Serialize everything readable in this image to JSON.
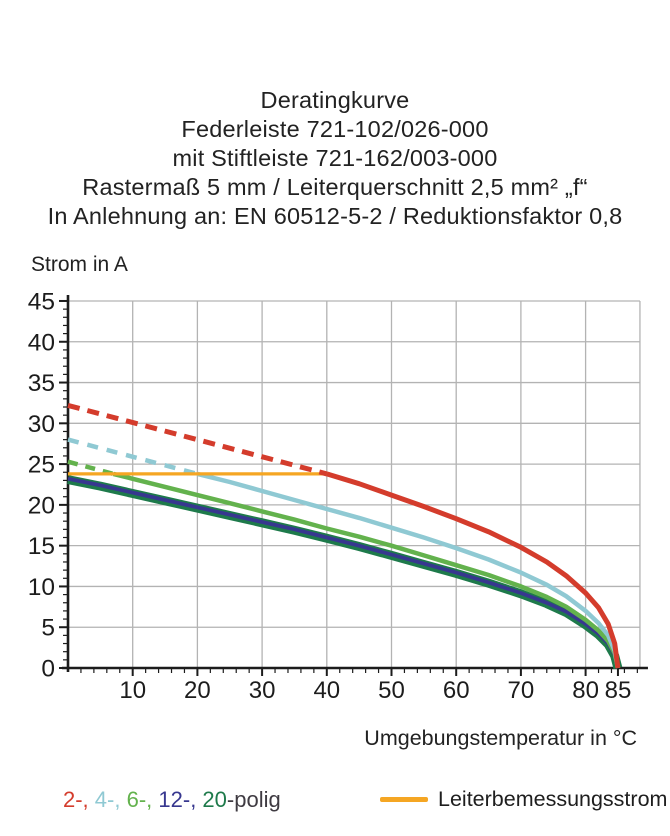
{
  "title": {
    "lines": [
      "Deratingkurve",
      "Federleiste 721-102/026-000",
      "mit Stiftleiste 721-162/003-000",
      "Rastermaß 5 mm / Leiterquerschnitt 2,5 mm² „f“",
      "In Anlehnung an: EN 60512-5-2 / Reduktionsfaktor 0,8"
    ]
  },
  "chart_data": {
    "type": "line",
    "title": "Deratingkurve",
    "ylabel": "Strom in A",
    "xlabel": "Umgebungstemperatur in °C",
    "xlim": [
      0,
      88.4
    ],
    "ylim": [
      0,
      45
    ],
    "grid": {
      "color": "#b3b3b3",
      "x_lines": [
        10,
        20,
        30,
        40,
        50,
        60,
        70,
        80
      ],
      "y_lines": [
        5,
        10,
        15,
        20,
        25,
        30,
        35,
        40,
        45
      ]
    },
    "x_major_ticks": [
      10,
      20,
      30,
      40,
      50,
      60,
      70,
      80,
      85
    ],
    "x_minor_step": 2,
    "y_major_ticks": [
      0,
      5,
      10,
      15,
      20,
      25,
      30,
      35,
      40,
      45
    ],
    "y_minor_step": 1,
    "axis_color": "#1c1c1c",
    "reference_line": {
      "name": "Leiterbemessungsstrom",
      "color": "#f5a623",
      "y": 23.8,
      "x_start": 0,
      "x_end": 40.5
    },
    "series": [
      {
        "name": "20-polig",
        "color": "#1e7a4b",
        "solid": [
          [
            0,
            23.1
          ],
          [
            5,
            22.3
          ],
          [
            10,
            21.4
          ],
          [
            15,
            20.5
          ],
          [
            20,
            19.6
          ],
          [
            25,
            18.7
          ],
          [
            30,
            17.8
          ],
          [
            35,
            16.9
          ],
          [
            40,
            15.9
          ],
          [
            45,
            14.9
          ],
          [
            50,
            13.8
          ],
          [
            55,
            12.7
          ],
          [
            60,
            11.6
          ],
          [
            65,
            10.4
          ],
          [
            70,
            9.1
          ],
          [
            74,
            7.9
          ],
          [
            77,
            6.8
          ],
          [
            80,
            5.3
          ],
          [
            82,
            4.1
          ],
          [
            83.5,
            2.9
          ],
          [
            84.5,
            1.5
          ],
          [
            85,
            0
          ]
        ]
      },
      {
        "name": "12-polig",
        "color": "#37378f",
        "solid": [
          [
            0,
            23.2
          ],
          [
            5,
            22.4
          ],
          [
            10,
            21.5
          ],
          [
            15,
            20.6
          ],
          [
            20,
            19.7
          ],
          [
            25,
            18.8
          ],
          [
            30,
            17.9
          ],
          [
            35,
            17.0
          ],
          [
            40,
            16.0
          ],
          [
            45,
            15.0
          ],
          [
            50,
            13.9
          ],
          [
            55,
            12.8
          ],
          [
            60,
            11.7
          ],
          [
            65,
            10.5
          ],
          [
            70,
            9.2
          ],
          [
            74,
            8.0
          ],
          [
            77,
            6.9
          ],
          [
            80,
            5.4
          ],
          [
            82,
            4.2
          ],
          [
            83.5,
            3.0
          ],
          [
            84.5,
            1.6
          ],
          [
            85,
            0
          ]
        ]
      },
      {
        "name": "6-polig",
        "color": "#63b24d",
        "dashed": [
          [
            0,
            25.3
          ],
          [
            7,
            23.8
          ]
        ],
        "solid": [
          [
            7,
            23.8
          ],
          [
            10,
            23.2
          ],
          [
            15,
            22.2
          ],
          [
            20,
            21.2
          ],
          [
            25,
            20.2
          ],
          [
            30,
            19.2
          ],
          [
            35,
            18.2
          ],
          [
            40,
            17.1
          ],
          [
            45,
            16.1
          ],
          [
            50,
            15.0
          ],
          [
            55,
            13.8
          ],
          [
            60,
            12.6
          ],
          [
            65,
            11.4
          ],
          [
            70,
            10.0
          ],
          [
            74,
            8.7
          ],
          [
            77,
            7.5
          ],
          [
            80,
            5.9
          ],
          [
            82,
            4.6
          ],
          [
            83.5,
            3.3
          ],
          [
            84.5,
            1.8
          ],
          [
            85,
            0
          ]
        ]
      },
      {
        "name": "4-polig",
        "color": "#8fc9d3",
        "dashed": [
          [
            0,
            28.0
          ],
          [
            20,
            23.8
          ]
        ],
        "solid": [
          [
            20,
            23.8
          ],
          [
            25,
            22.8
          ],
          [
            30,
            21.7
          ],
          [
            35,
            20.6
          ],
          [
            40,
            19.5
          ],
          [
            45,
            18.4
          ],
          [
            50,
            17.2
          ],
          [
            55,
            16.0
          ],
          [
            60,
            14.7
          ],
          [
            65,
            13.3
          ],
          [
            70,
            11.7
          ],
          [
            74,
            10.2
          ],
          [
            77,
            8.8
          ],
          [
            80,
            7.0
          ],
          [
            82,
            5.5
          ],
          [
            83.5,
            4.0
          ],
          [
            84.5,
            2.1
          ],
          [
            85,
            0
          ]
        ]
      },
      {
        "name": "2-polig",
        "color": "#d43c2c",
        "dashed": [
          [
            0,
            32.2
          ],
          [
            40,
            23.8
          ]
        ],
        "solid": [
          [
            40,
            23.8
          ],
          [
            45,
            22.6
          ],
          [
            50,
            21.2
          ],
          [
            55,
            19.8
          ],
          [
            60,
            18.3
          ],
          [
            65,
            16.7
          ],
          [
            70,
            14.8
          ],
          [
            74,
            13.0
          ],
          [
            77,
            11.3
          ],
          [
            80,
            9.2
          ],
          [
            82,
            7.4
          ],
          [
            83.5,
            5.4
          ],
          [
            84.5,
            3.0
          ],
          [
            85,
            0
          ]
        ]
      }
    ]
  },
  "legend": {
    "poles": {
      "segments": [
        {
          "text": "2-, ",
          "color": "#d43c2c"
        },
        {
          "text": "4-, ",
          "color": "#8fc9d3"
        },
        {
          "text": "6-, ",
          "color": "#63b24d"
        },
        {
          "text": "12-, ",
          "color": "#37378f"
        },
        {
          "text": "20",
          "color": "#1e7a4b"
        },
        {
          "text": "-polig",
          "color": "#3f3b42"
        }
      ]
    },
    "reference": {
      "label": "Leiterbemessungsstrom",
      "color": "#f5a623"
    }
  }
}
